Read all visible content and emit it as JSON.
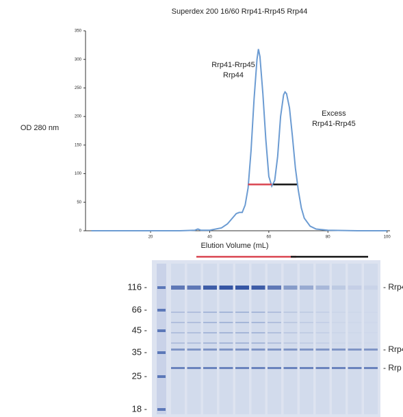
{
  "chart_data": {
    "type": "line",
    "title": "Superdex 200 16/60 Rrp41-Rrp45 Rrp44",
    "y_label": "OD 280 nm",
    "x_label": "Elution Volume (mL)",
    "x": [
      0,
      10,
      20,
      30,
      35,
      36,
      37,
      40,
      44,
      46,
      48,
      49,
      50,
      51,
      52,
      53,
      54,
      55,
      56,
      56.5,
      57,
      58,
      59,
      60,
      61,
      62,
      63,
      64,
      65,
      65.5,
      66,
      67,
      68,
      69,
      70,
      71,
      72,
      74,
      76,
      80,
      90,
      100
    ],
    "series": [
      {
        "color": "#6b9bd2",
        "values": [
          0,
          0,
          0,
          0,
          1,
          3,
          1,
          1,
          5,
          12,
          24,
          30,
          32,
          32,
          45,
          75,
          140,
          230,
          300,
          318,
          305,
          240,
          160,
          95,
          78,
          88,
          130,
          200,
          238,
          243,
          240,
          215,
          165,
          110,
          70,
          40,
          22,
          8,
          3,
          1,
          0,
          0
        ]
      }
    ],
    "xlim": [
      -2,
      101
    ],
    "xticks": [
      20,
      40,
      60,
      80,
      100
    ],
    "ylim": [
      0,
      350
    ],
    "yticks": [
      0,
      50,
      100,
      150,
      200,
      250,
      300,
      350
    ],
    "annotations": [
      {
        "text": [
          "Rrp41-Rrp45",
          "Rrp44"
        ],
        "x": 48,
        "y": 290
      },
      {
        "text": [
          "Excess",
          "Rrp41-Rrp45"
        ],
        "x": 82,
        "y": 205
      }
    ],
    "ranges": [
      {
        "color": "#d9434f",
        "x": [
          53,
          61
        ],
        "y": 81
      },
      {
        "color": "#111111",
        "x": [
          61.5,
          69.5
        ],
        "y": 81
      }
    ]
  },
  "gel": {
    "markers": [
      "116 -",
      "66 -",
      "45 -",
      "35 -",
      "25 -",
      "18 -"
    ],
    "bands": [
      "- Rrp4",
      "- Rrp4",
      "- Rrp"
    ]
  }
}
